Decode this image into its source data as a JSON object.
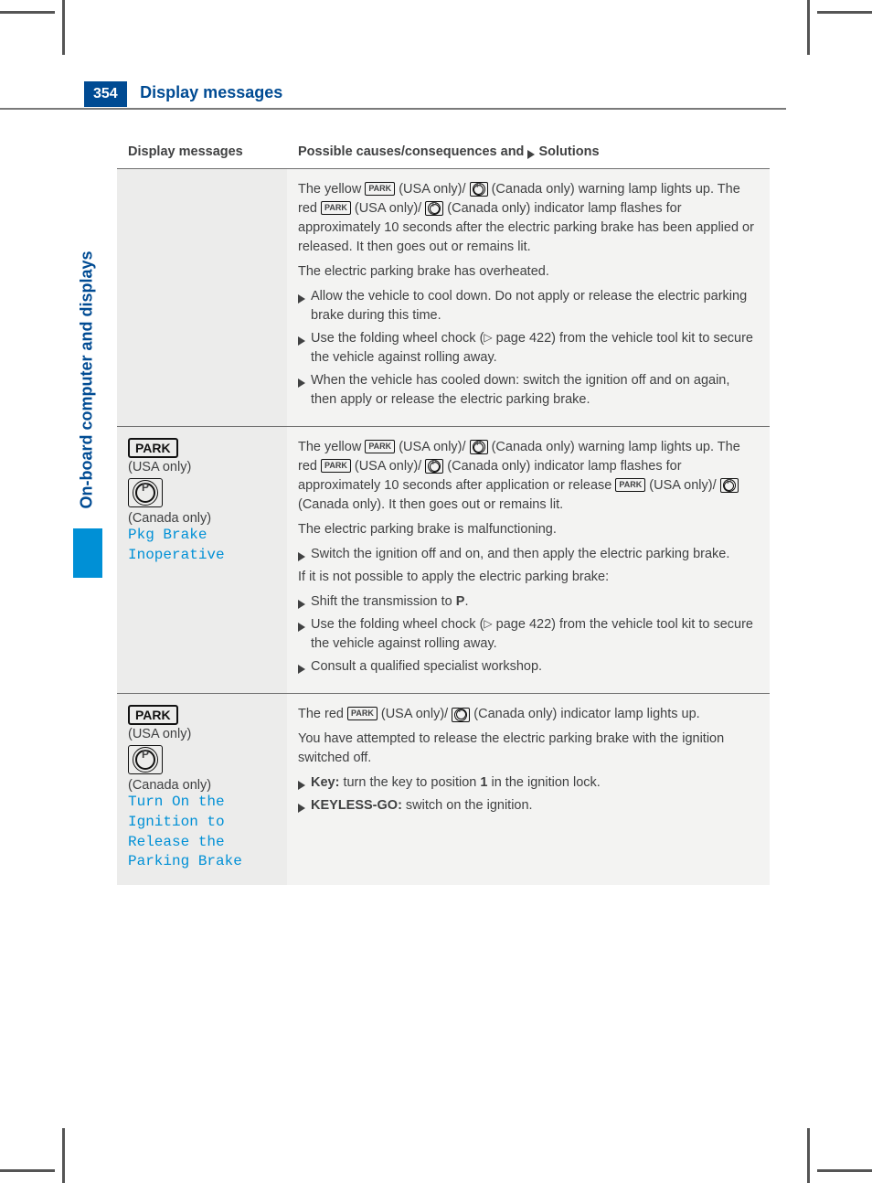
{
  "page": {
    "number": "354",
    "title": "Display messages"
  },
  "sidebar": {
    "label": "On-board computer and displays"
  },
  "table": {
    "header": {
      "col1": "Display messages",
      "col2_prefix": "Possible causes/consequences and ",
      "col2_suffix": " Solutions"
    },
    "row1": {
      "p1_a": "The yellow ",
      "p1_b": " (USA only)/ ",
      "p1_c": " (Canada only) warning lamp lights up. The red ",
      "p1_d": " (USA only)/ ",
      "p1_e": " (Canada only) indicator lamp flashes for approximately 10 seconds after the electric parking brake has been applied or released. It then goes out or remains lit.",
      "p2": "The electric parking brake has overheated.",
      "a1": "Allow the vehicle to cool down. Do not apply or release the electric parking brake during this time.",
      "a2_a": "Use the folding wheel chock (",
      "a2_b": " page 422) from the vehicle tool kit to secure the vehicle against rolling away.",
      "a3": "When the vehicle has cooled down: switch the ignition off and on again, then apply or release the electric parking brake."
    },
    "row2": {
      "left": {
        "park": "PARK",
        "usa": "(USA only)",
        "canada": "(Canada only)",
        "msg_l1": "Pkg Brake",
        "msg_l2": "Inoperative"
      },
      "p1_a": "The yellow ",
      "p1_b": " (USA only)/ ",
      "p1_c": " (Canada only) warning lamp lights up. The red ",
      "p1_d": " (USA only)/ ",
      "p1_e": " (Canada only) indicator lamp flashes for approximately 10 seconds after application or release ",
      "p1_f": " (USA only)/ ",
      "p1_g": " (Canada only). It then goes out or remains lit.",
      "p2": "The electric parking brake is malfunctioning.",
      "a1": "Switch the ignition off and on, and then apply the electric parking brake.",
      "p3": "If it is not possible to apply the electric parking brake:",
      "a2_a": "Shift the transmission to ",
      "a2_b": "P",
      "a2_c": ".",
      "a3_a": "Use the folding wheel chock (",
      "a3_b": " page 422) from the vehicle tool kit to secure the vehicle against rolling away.",
      "a4": "Consult a qualified specialist workshop."
    },
    "row3": {
      "left": {
        "park": "PARK",
        "usa": "(USA only)",
        "canada": "(Canada only)",
        "msg_l1": "Turn On the",
        "msg_l2": "Ignition to",
        "msg_l3": "Release the",
        "msg_l4": "Parking Brake"
      },
      "p1_a": "The red ",
      "p1_b": " (USA only)/ ",
      "p1_c": " (Canada only) indicator lamp lights up.",
      "p2": "You have attempted to release the electric parking brake with the ignition switched off.",
      "a1_a": "Key:",
      "a1_b": " turn the key to position ",
      "a1_c": "1",
      "a1_d": " in the ignition lock.",
      "a2_a": "KEYLESS-GO:",
      "a2_b": " switch on the ignition."
    }
  },
  "colors": {
    "brand_blue": "#004b93",
    "accent_blue": "#0090d6",
    "text_gray": "#404142",
    "row_bg": "#f3f3f2",
    "row_bg_left": "#ececeb",
    "rule_gray": "#707070"
  }
}
